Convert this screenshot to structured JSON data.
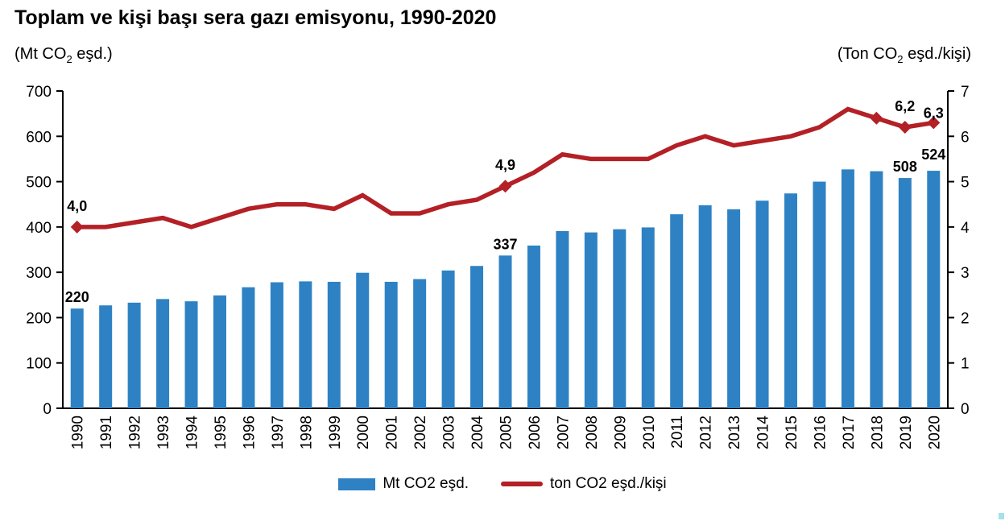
{
  "title": "Toplam ve kişi başı sera gazı emisyonu, 1990-2020",
  "left_axis": {
    "unit_pre": "(Mt CO",
    "unit_sub": "2",
    "unit_post": " eşd.)",
    "ticks": [
      0,
      100,
      200,
      300,
      400,
      500,
      600,
      700
    ]
  },
  "right_axis": {
    "unit_pre": "(Ton CO",
    "unit_sub": "2",
    "unit_post": " eşd./kişi)",
    "ticks": [
      0,
      1,
      2,
      3,
      4,
      5,
      6,
      7
    ]
  },
  "legend": {
    "bars_label": "Mt CO2 eşd.",
    "line_label": "ton CO2 eşd./kişi"
  },
  "colors": {
    "bar": "#2E82C4",
    "line": "#B32025",
    "data_label": "#595959",
    "axis": "#000000",
    "corner_mark": "#5BC8D5"
  },
  "chart_data": {
    "type": "bar",
    "subtype": "combo-bar-line-dual-axis",
    "title": "Toplam ve kişi başı sera gazı emisyonu, 1990-2020",
    "categories": [
      1990,
      1991,
      1992,
      1993,
      1994,
      1995,
      1996,
      1997,
      1998,
      1999,
      2000,
      2001,
      2002,
      2003,
      2004,
      2005,
      2006,
      2007,
      2008,
      2009,
      2010,
      2011,
      2012,
      2013,
      2014,
      2015,
      2016,
      2017,
      2018,
      2019,
      2020
    ],
    "series": [
      {
        "name": "Mt CO2 eşd.",
        "type": "bar",
        "axis": "left",
        "color": "#2E82C4",
        "values": [
          220,
          227,
          233,
          241,
          236,
          249,
          267,
          278,
          280,
          279,
          299,
          279,
          285,
          304,
          314,
          337,
          359,
          391,
          388,
          395,
          399,
          428,
          448,
          439,
          458,
          474,
          500,
          527,
          523,
          508,
          524
        ]
      },
      {
        "name": "ton CO2 eşd./kişi",
        "type": "line",
        "axis": "right",
        "color": "#B32025",
        "values": [
          4.0,
          4.0,
          4.1,
          4.2,
          4.0,
          4.2,
          4.4,
          4.5,
          4.5,
          4.4,
          4.7,
          4.3,
          4.3,
          4.5,
          4.6,
          4.9,
          5.2,
          5.6,
          5.5,
          5.5,
          5.5,
          5.8,
          6.0,
          5.8,
          5.9,
          6.0,
          6.2,
          6.6,
          6.4,
          6.2,
          6.3
        ],
        "marker_years": [
          1990,
          2005,
          2018,
          2019,
          2020
        ]
      }
    ],
    "data_labels": [
      {
        "year": 1990,
        "bar_label": "220",
        "line_label": "4,0"
      },
      {
        "year": 2005,
        "bar_label": "337",
        "line_label": "4,9"
      },
      {
        "year": 2019,
        "bar_label": "508",
        "line_label": "6,2"
      },
      {
        "year": 2020,
        "bar_label": "524",
        "line_label": "6,3"
      }
    ],
    "xlabel": "",
    "ylabel_left": "(Mt CO2 eşd.)",
    "ylabel_right": "(Ton CO2 eşd./kişi)",
    "ylim_left": [
      0,
      700
    ],
    "ylim_right": [
      0,
      7
    ],
    "grid": false,
    "legend_position": "bottom"
  }
}
